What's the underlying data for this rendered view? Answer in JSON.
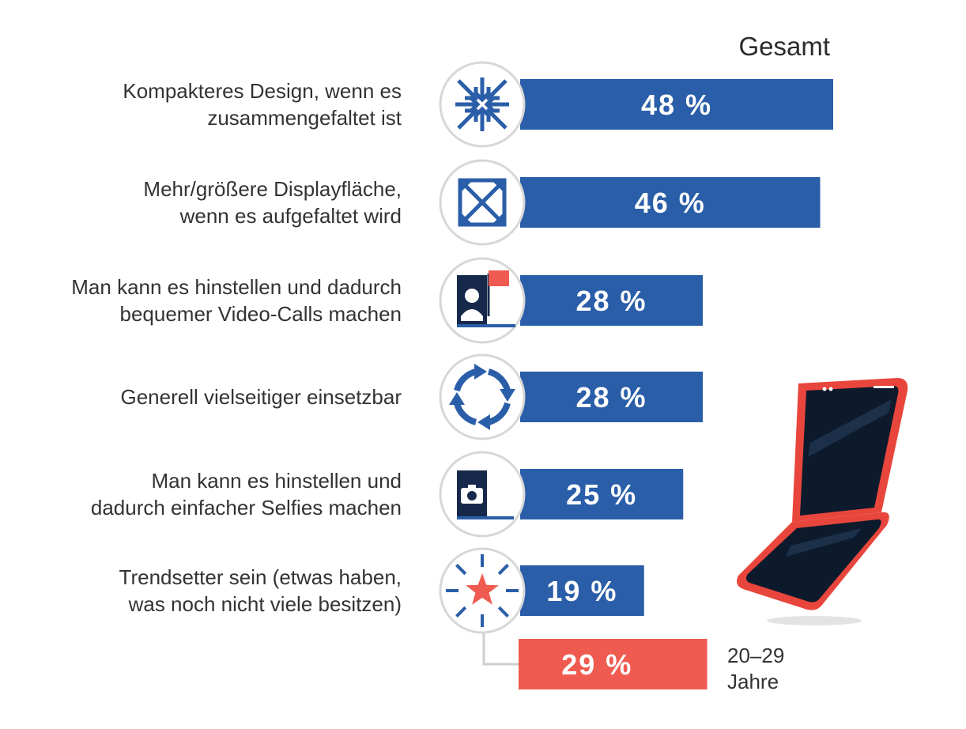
{
  "chart_data": {
    "type": "bar",
    "orientation": "horizontal",
    "column_header": "Gesamt",
    "categories": [
      "Kompakteres Design, wenn es zusammengefaltet ist",
      "Mehr/größere Displayfläche, wenn es aufgefaltet wird",
      "Man kann es hinstellen und dadurch bequemer Video-Calls machen",
      "Generell vielseitiger einsetzbar",
      "Man kann es hinstellen und dadurch einfacher Selfies machen",
      "Trendsetter sein (etwas haben, was noch nicht viele besitzen)"
    ],
    "label_lines": [
      [
        "Kompakteres Design, wenn es",
        "zusammengefaltet ist"
      ],
      [
        "Mehr/größere Displayfläche,",
        "wenn es aufgefaltet wird"
      ],
      [
        "Man kann es hinstellen und dadurch",
        "bequemer Video-Calls machen"
      ],
      [
        "Generell vielseitiger einsetzbar"
      ],
      [
        "Man kann es hinstellen und",
        "dadurch einfacher Selfies machen"
      ],
      [
        "Trendsetter sein (etwas haben,",
        "was noch nicht viele besitzen)"
      ]
    ],
    "icons": [
      "compress-arrows-icon",
      "expand-arrows-icon",
      "video-call-icon",
      "rotate-arrows-icon",
      "selfie-camera-icon",
      "star-burst-icon"
    ],
    "series": [
      {
        "name": "Gesamt",
        "values": [
          48,
          46,
          28,
          28,
          25,
          19
        ],
        "value_labels": [
          "48 %",
          "46 %",
          "28 %",
          "28 %",
          "25 %",
          "19 %"
        ],
        "color": "#2a5ea8"
      }
    ],
    "subgroup": {
      "category_index": 5,
      "name_lines": [
        "20–29",
        "Jahre"
      ],
      "value": 29,
      "value_label": "29 %",
      "color": "#ef5b51"
    },
    "xlim": [
      0,
      48
    ],
    "axis_visible": false,
    "grid": false
  },
  "colors": {
    "bar_blue": "#2a5ea8",
    "bar_red": "#ef5b51",
    "icon_dark": "#16294a",
    "phone_red": "#e8463c",
    "text": "#333333"
  }
}
